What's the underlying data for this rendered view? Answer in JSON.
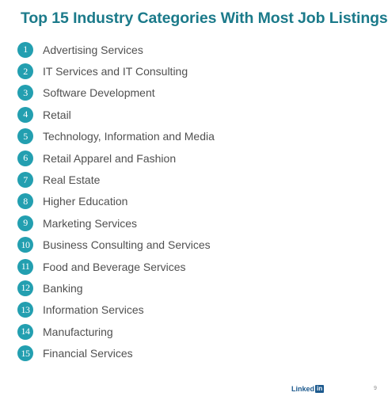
{
  "title": "Top 15 Industry Categories With Most Job Listings",
  "items": [
    {
      "number": "1",
      "label": "Advertising Services"
    },
    {
      "number": "2",
      "label": "IT Services and IT Consulting"
    },
    {
      "number": "3",
      "label": "Software Development"
    },
    {
      "number": "4",
      "label": "Retail"
    },
    {
      "number": "5",
      "label": "Technology, Information and Media"
    },
    {
      "number": "6",
      "label": "Retail Apparel and Fashion"
    },
    {
      "number": "7",
      "label": "Real Estate"
    },
    {
      "number": "8",
      "label": "Higher Education"
    },
    {
      "number": "9",
      "label": "Marketing Services"
    },
    {
      "number": "10",
      "label": "Business Consulting and Services"
    },
    {
      "number": "11",
      "label": "Food and Beverage Services"
    },
    {
      "number": "12",
      "label": "Banking"
    },
    {
      "number": "13",
      "label": "Information Services"
    },
    {
      "number": "14",
      "label": "Manufacturing"
    },
    {
      "number": "15",
      "label": "Financial Services"
    }
  ],
  "footer": {
    "logo_text": "Linked",
    "logo_box": "in",
    "page_number": "9"
  },
  "colors": {
    "title": "#1b7a8a",
    "badge": "#239fb0",
    "text": "#505050",
    "logo": "#1d5a8e"
  }
}
